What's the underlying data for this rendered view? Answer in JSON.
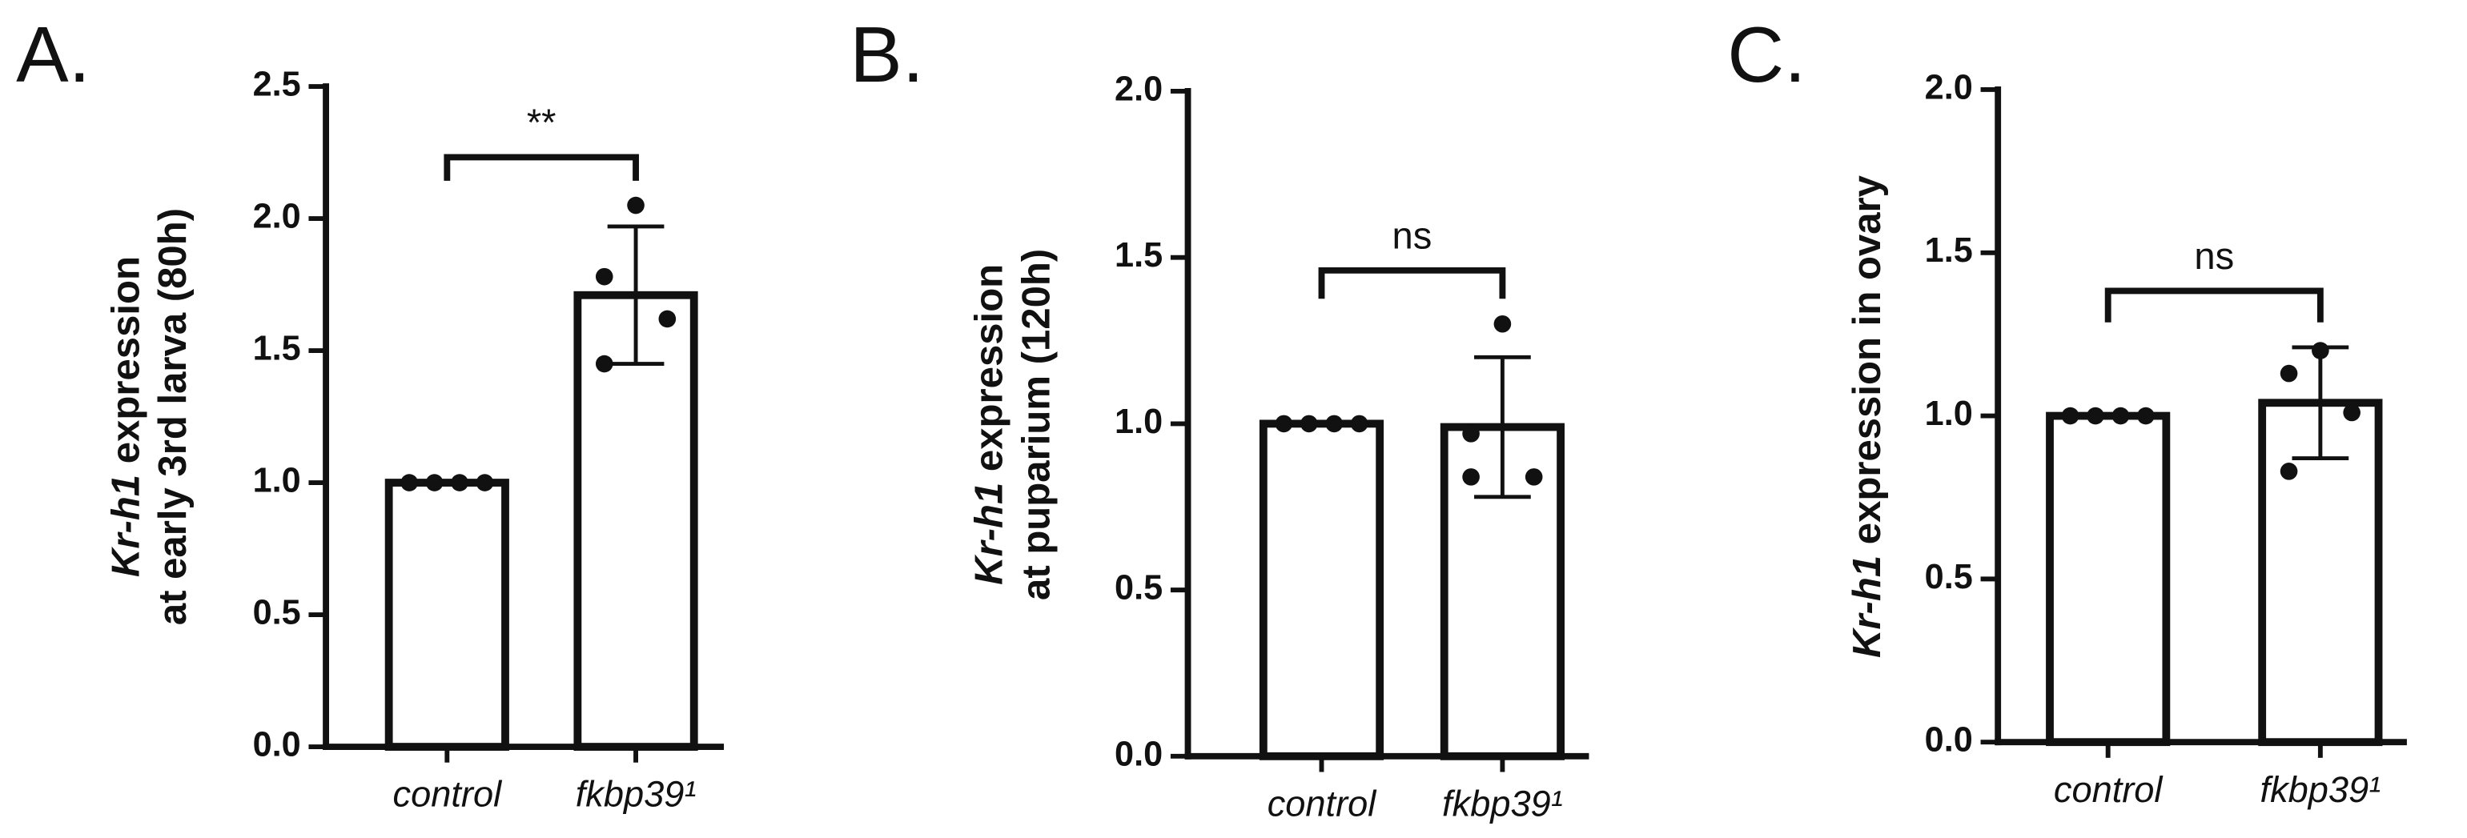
{
  "chart_data": [
    {
      "type": "bar",
      "panel": "A.",
      "ylabel": [
        {
          "italic": "Kr-h1",
          "text": " expression"
        },
        "at early 3rd larva (80h)"
      ],
      "categories": [
        "control",
        "fkbp39¹"
      ],
      "values": [
        1.0,
        1.71
      ],
      "errors": [
        null,
        0.26
      ],
      "points": [
        [
          1.0,
          1.0,
          1.0,
          1.0
        ],
        [
          2.05,
          1.78,
          1.62,
          1.45
        ]
      ],
      "annotation": "**",
      "ylim": [
        0,
        2.5
      ],
      "yticks": [
        {
          "value": 0,
          "label": "0.0"
        },
        {
          "value": 0.5,
          "label": "0.5"
        },
        {
          "value": 1,
          "label": "1.0"
        },
        {
          "value": 1.5,
          "label": "1.5"
        },
        {
          "value": 2,
          "label": "2.0"
        },
        {
          "value": 2.5,
          "label": "2.5"
        }
      ],
      "color": "#ffffff"
    },
    {
      "type": "bar",
      "panel": "B.",
      "ylabel": [
        {
          "italic": "Kr-h1",
          "text": " expression"
        },
        "at puparium (120h)"
      ],
      "categories": [
        "control",
        "fkbp39¹"
      ],
      "values": [
        1.0,
        0.99
      ],
      "errors": [
        null,
        0.21
      ],
      "points": [
        [
          1.0,
          1.0,
          1.0,
          1.0
        ],
        [
          1.3,
          0.97,
          0.84,
          0.84
        ]
      ],
      "annotation": "ns",
      "ylim": [
        0,
        2.0
      ],
      "yticks": [
        {
          "value": 0,
          "label": "0.0"
        },
        {
          "value": 0.5,
          "label": "0.5"
        },
        {
          "value": 1,
          "label": "1.0"
        },
        {
          "value": 1.5,
          "label": "1.5"
        },
        {
          "value": 2,
          "label": "2.0"
        }
      ],
      "color": "#ffffff"
    },
    {
      "type": "bar",
      "panel": "C.",
      "ylabel": [
        {
          "italic": "Kr-h1",
          "text": " expression in ovary"
        }
      ],
      "categories": [
        "control",
        "fkbp39¹"
      ],
      "values": [
        1.0,
        1.04
      ],
      "errors": [
        null,
        0.17
      ],
      "points": [
        [
          1.0,
          1.0,
          1.0,
          1.0
        ],
        [
          1.2,
          1.13,
          1.01,
          0.83
        ]
      ],
      "annotation": "ns",
      "ylim": [
        0,
        2.0
      ],
      "yticks": [
        {
          "value": 0,
          "label": "0.0"
        },
        {
          "value": 0.5,
          "label": "0.5"
        },
        {
          "value": 1,
          "label": "1.0"
        },
        {
          "value": 1.5,
          "label": "1.5"
        },
        {
          "value": 2,
          "label": "2.0"
        }
      ],
      "color": "#ffffff"
    }
  ]
}
